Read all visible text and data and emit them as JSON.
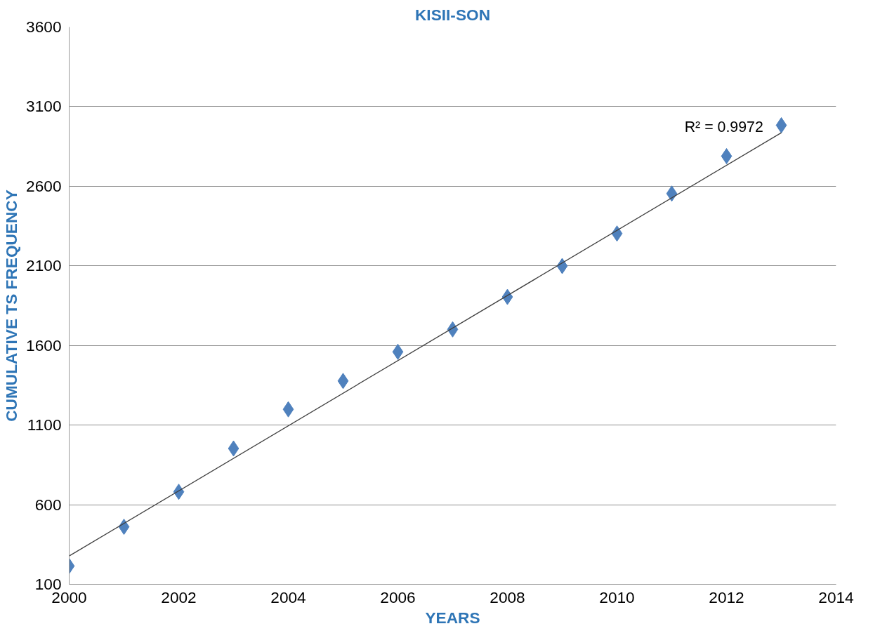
{
  "chart_data": {
    "type": "scatter",
    "title": "KISII-SON",
    "xlabel": "YEARS",
    "ylabel": "CUMULATIVE TS FREQUENCY",
    "x": [
      2000,
      2001,
      2002,
      2003,
      2004,
      2005,
      2006,
      2007,
      2008,
      2009,
      2010,
      2011,
      2012,
      2013
    ],
    "series": [
      {
        "color": "#4f81bd",
        "marker": "diamond",
        "values": [
          215,
          461,
          681,
          953,
          1199,
          1377,
          1560,
          1701,
          1905,
          2099,
          2303,
          2554,
          2789,
          2983
        ]
      },
      {
        "type": "line",
        "color": "#404040",
        "line_style": "solid",
        "marker": "none",
        "x": [
          2000,
          2013
        ],
        "values": [
          278,
          2936
        ]
      }
    ],
    "annotations": [
      "R² = 0.9972"
    ],
    "xlim": [
      2000,
      2014
    ],
    "xticks": [
      2000,
      2002,
      2004,
      2006,
      2008,
      2010,
      2012,
      2014
    ],
    "ylim": [
      100,
      3600
    ],
    "yticks": [
      100,
      600,
      1100,
      1600,
      2100,
      2600,
      3100,
      3600
    ],
    "grid": "y"
  }
}
